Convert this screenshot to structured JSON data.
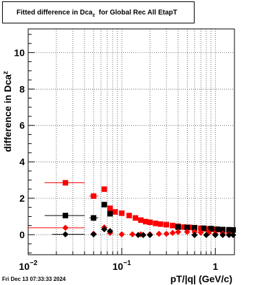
{
  "title": {
    "main": "Fitted difference in Dca",
    "sub": "z",
    "suffix": "  for Global Rec All EtapT"
  },
  "footer": {
    "timestamp": "Fri Dec 13 07:33:33 2024"
  },
  "chart_data": {
    "type": "scatter",
    "xlabel": "pT/|q| (GeV/c)",
    "ylabel": "difference in Dca",
    "ylabel_sub": "z",
    "x_scale": "log",
    "xlim": [
      0.01,
      1.6
    ],
    "ylim": [
      -1.1,
      11.3
    ],
    "grid": true,
    "x_ticks": [
      {
        "value": 0.01,
        "base": "10",
        "exp": "−2"
      },
      {
        "value": 0.1,
        "base": "10",
        "exp": "−1"
      },
      {
        "value": 1,
        "base": "1",
        "exp": ""
      }
    ],
    "y_ticks": [
      0,
      2,
      4,
      6,
      8,
      10
    ],
    "series": [
      {
        "color": "#ff0000",
        "marker": "square",
        "points": [
          {
            "x": 0.025,
            "y": 2.85,
            "xerr": [
              0.015,
              0.04
            ]
          },
          {
            "x": 0.05,
            "y": 2.12,
            "xerr": [
              0.045,
              0.056
            ]
          },
          {
            "x": 0.065,
            "y": 2.5,
            "xerr": [
              0.062,
              0.068
            ]
          },
          {
            "x": 0.075,
            "y": 1.45
          },
          {
            "x": 0.085,
            "y": 1.25
          },
          {
            "x": 0.1,
            "y": 1.18
          },
          {
            "x": 0.12,
            "y": 1.05
          },
          {
            "x": 0.14,
            "y": 0.92
          },
          {
            "x": 0.16,
            "y": 0.8
          },
          {
            "x": 0.18,
            "y": 0.72
          },
          {
            "x": 0.2,
            "y": 0.68
          },
          {
            "x": 0.23,
            "y": 0.62
          },
          {
            "x": 0.26,
            "y": 0.58
          },
          {
            "x": 0.3,
            "y": 0.55
          },
          {
            "x": 0.35,
            "y": 0.5
          },
          {
            "x": 0.4,
            "y": 0.46
          },
          {
            "x": 0.46,
            "y": 0.42
          },
          {
            "x": 0.53,
            "y": 0.4
          },
          {
            "x": 0.6,
            "y": 0.38
          },
          {
            "x": 0.7,
            "y": 0.35
          },
          {
            "x": 0.8,
            "y": 0.32
          },
          {
            "x": 0.92,
            "y": 0.3
          },
          {
            "x": 1.05,
            "y": 0.28
          },
          {
            "x": 1.2,
            "y": 0.25
          },
          {
            "x": 1.4,
            "y": 0.23
          }
        ]
      },
      {
        "color": "#000000",
        "marker": "square",
        "points": [
          {
            "x": 0.025,
            "y": 1.05,
            "xerr": [
              0.015,
              0.04
            ]
          },
          {
            "x": 0.05,
            "y": 0.92,
            "xerr": [
              0.045,
              0.056
            ]
          },
          {
            "x": 0.065,
            "y": 1.65
          },
          {
            "x": 0.075,
            "y": 1.15
          },
          {
            "x": 0.4,
            "y": 0.42
          },
          {
            "x": 0.5,
            "y": 0.4
          },
          {
            "x": 0.6,
            "y": 0.38
          },
          {
            "x": 0.75,
            "y": 0.35
          },
          {
            "x": 0.9,
            "y": 0.33
          },
          {
            "x": 1.05,
            "y": 0.3
          },
          {
            "x": 1.2,
            "y": 0.28
          },
          {
            "x": 1.4,
            "y": 0.27
          },
          {
            "x": 1.55,
            "y": 0.26
          }
        ]
      },
      {
        "color": "#ff0000",
        "marker": "diamond",
        "points": [
          {
            "x": 0.025,
            "y": 0.38,
            "xerr": [
              0.01,
              0.04
            ]
          },
          {
            "x": 0.05,
            "y": 0.05
          },
          {
            "x": 0.065,
            "y": 0.4
          },
          {
            "x": 0.075,
            "y": 0.1
          },
          {
            "x": 0.1,
            "y": 0.02
          },
          {
            "x": 0.13,
            "y": 0.02
          },
          {
            "x": 0.16,
            "y": 0.02
          },
          {
            "x": 0.2,
            "y": 0.02
          },
          {
            "x": 0.25,
            "y": 0.05
          },
          {
            "x": 0.3,
            "y": 0.05
          },
          {
            "x": 0.35,
            "y": 0.1
          },
          {
            "x": 0.4,
            "y": 0.15
          },
          {
            "x": 0.5,
            "y": 0.15
          },
          {
            "x": 0.6,
            "y": 0.15
          },
          {
            "x": 0.7,
            "y": 0.12
          },
          {
            "x": 0.85,
            "y": 0.1
          },
          {
            "x": 1.0,
            "y": 0.05
          },
          {
            "x": 1.2,
            "y": 0.05
          },
          {
            "x": 1.4,
            "y": 0.02
          }
        ]
      },
      {
        "color": "#000000",
        "marker": "diamond",
        "points": [
          {
            "x": 0.025,
            "y": 0.02,
            "xerr": [
              0.018,
              0.04
            ]
          },
          {
            "x": 0.05,
            "y": 0.02
          },
          {
            "x": 0.065,
            "y": 0.3
          },
          {
            "x": 0.075,
            "y": 0.2
          },
          {
            "x": 0.15,
            "y": -0.02
          },
          {
            "x": 0.17,
            "y": -0.02
          },
          {
            "x": 0.2,
            "y": -0.02
          },
          {
            "x": 0.6,
            "y": -0.02
          },
          {
            "x": 0.8,
            "y": -0.02
          },
          {
            "x": 1.0,
            "y": -0.02
          },
          {
            "x": 1.2,
            "y": -0.02
          },
          {
            "x": 1.4,
            "y": -0.02
          },
          {
            "x": 1.55,
            "y": -0.02
          }
        ]
      }
    ]
  }
}
